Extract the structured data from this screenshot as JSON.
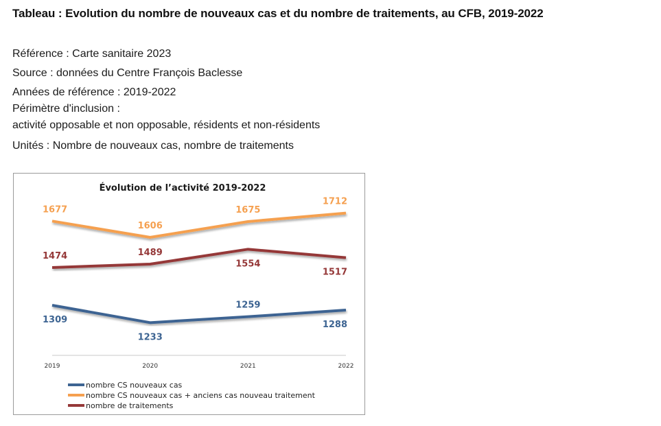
{
  "page": {
    "title": "Tableau : Evolution du nombre de nouveaux cas et du nombre de traitements, au CFB, 2019-2022",
    "reference": "Référence : Carte sanitaire 2023",
    "source": "Source : données du Centre François Baclesse",
    "years": "Années de référence : 2019-2022",
    "perimeter_label": "Périmètre d'inclusion :",
    "perimeter_value": "activité opposable et non opposable, résidents et non-résidents",
    "units": "Unités : Nombre de nouveaux cas, nombre de traitements"
  },
  "chart_data": {
    "type": "line",
    "title": "Évolution de l’activité 2019-2022",
    "categories": [
      "2019",
      "2020",
      "2021",
      "2022"
    ],
    "ylim": [
      1150,
      1750
    ],
    "grid": false,
    "legend_position": "bottom-left",
    "series": [
      {
        "name": "nombre CS nouveaux cas",
        "color": "#3d6492",
        "values": [
          1309,
          1233,
          1259,
          1288
        ],
        "label_pos": [
          "below",
          "below",
          "above",
          "below"
        ]
      },
      {
        "name": "nombre CS nouveaux cas + anciens cas nouveau traitement",
        "color": "#f5a050",
        "values": [
          1677,
          1606,
          1675,
          1712
        ],
        "label_pos": [
          "above",
          "above",
          "above",
          "above"
        ]
      },
      {
        "name": "nombre de traitements",
        "color": "#953838",
        "values": [
          1474,
          1489,
          1554,
          1517
        ],
        "label_pos": [
          "above",
          "above",
          "below",
          "below"
        ]
      }
    ]
  }
}
